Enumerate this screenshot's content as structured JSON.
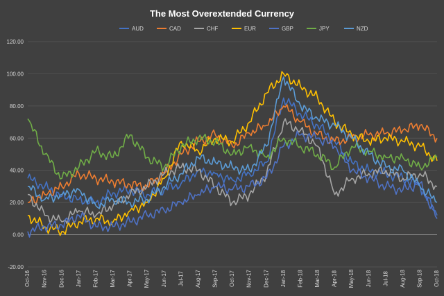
{
  "chart_data": {
    "type": "line",
    "title": "The Most Overextended Currency",
    "xlabel": "",
    "ylabel": "",
    "ylim": [
      -20,
      120
    ],
    "yticks": [
      "-20.00",
      "0.00",
      "20.00",
      "40.00",
      "60.00",
      "80.00",
      "100.00",
      "120.00"
    ],
    "categories": [
      "Oct-16",
      "Nov-16",
      "Dec-16",
      "Jan-17",
      "Feb-17",
      "Mar-17",
      "Apr-17",
      "May-17",
      "Jun-17",
      "Jul-17",
      "Aug-17",
      "Sep-17",
      "Oct-17",
      "Nov-17",
      "Dec-17",
      "Jan-18",
      "Feb-18",
      "Mar-18",
      "Apr-18",
      "May-18",
      "Jun-18",
      "Jul-18",
      "Aug-18",
      "Sep-18",
      "Oct-18"
    ],
    "grid": true,
    "legend_position": "top",
    "series": [
      {
        "name": "AUD",
        "color": "#4472c4",
        "values": [
          35,
          30,
          24,
          22,
          20,
          26,
          28,
          25,
          28,
          32,
          40,
          38,
          34,
          38,
          45,
          85,
          75,
          68,
          58,
          45,
          40,
          38,
          35,
          30,
          12
        ]
      },
      {
        "name": "CAD",
        "color": "#ed7d31",
        "values": [
          20,
          25,
          30,
          38,
          35,
          33,
          31,
          30,
          38,
          50,
          58,
          62,
          55,
          63,
          68,
          80,
          70,
          62,
          58,
          60,
          62,
          63,
          65,
          68,
          60
        ]
      },
      {
        "name": "CHF",
        "color": "#a5a5a5",
        "values": [
          25,
          12,
          8,
          15,
          12,
          18,
          25,
          30,
          38,
          42,
          40,
          30,
          20,
          25,
          38,
          70,
          65,
          55,
          25,
          35,
          38,
          40,
          35,
          38,
          30
        ]
      },
      {
        "name": "EUR",
        "color": "#ffc000",
        "values": [
          12,
          5,
          2,
          8,
          10,
          8,
          15,
          20,
          35,
          58,
          52,
          60,
          58,
          70,
          88,
          100,
          92,
          85,
          70,
          62,
          58,
          60,
          58,
          55,
          46
        ]
      },
      {
        "name": "GBP",
        "color": "#4f72c5",
        "values": [
          2,
          5,
          6,
          12,
          5,
          5,
          8,
          12,
          15,
          20,
          25,
          30,
          28,
          30,
          35,
          55,
          62,
          60,
          55,
          40,
          35,
          30,
          28,
          32,
          10
        ]
      },
      {
        "name": "JPY",
        "color": "#70ad47",
        "values": [
          72,
          50,
          35,
          42,
          52,
          48,
          62,
          48,
          42,
          55,
          60,
          58,
          50,
          55,
          48,
          60,
          55,
          50,
          42,
          55,
          52,
          48,
          48,
          42,
          48
        ]
      },
      {
        "name": "NZD",
        "color": "#5b9bd5",
        "values": [
          30,
          22,
          25,
          28,
          18,
          22,
          20,
          22,
          30,
          38,
          48,
          45,
          42,
          40,
          55,
          98,
          80,
          72,
          68,
          60,
          50,
          42,
          40,
          30,
          20
        ]
      }
    ]
  }
}
